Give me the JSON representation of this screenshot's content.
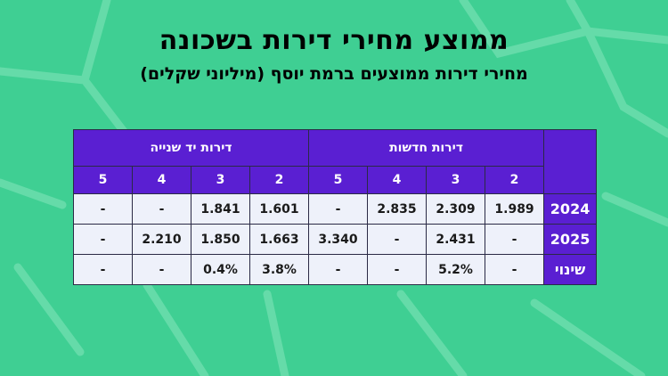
{
  "title": "ממוצע מחירי דירות בשכונה",
  "subtitle": "מחירי דירות ממוצעים ברמת יוסף (מיליוני שקלים)",
  "chart_data": {
    "type": "table",
    "groups": [
      "דירות חדשות",
      "דירות יד שנייה"
    ],
    "rooms": [
      "2",
      "3",
      "4",
      "5"
    ],
    "rows": [
      {
        "label": "2024",
        "new": [
          "1.989",
          "2.309",
          "2.835",
          "-"
        ],
        "used": [
          "1.601",
          "1.841",
          "-",
          "-"
        ]
      },
      {
        "label": "2025",
        "new": [
          "-",
          "2.431",
          "-",
          "3.340"
        ],
        "used": [
          "1.663",
          "1.850",
          "2.210",
          "-"
        ]
      },
      {
        "label": "שינוי",
        "new": [
          "-",
          "5.2%",
          "-",
          "-"
        ],
        "used": [
          "3.8%",
          "0.4%",
          "-",
          "-"
        ]
      }
    ]
  },
  "colors": {
    "background": "#3fcf93",
    "header": "#5a1fd2",
    "cell": "#eef1fa"
  }
}
